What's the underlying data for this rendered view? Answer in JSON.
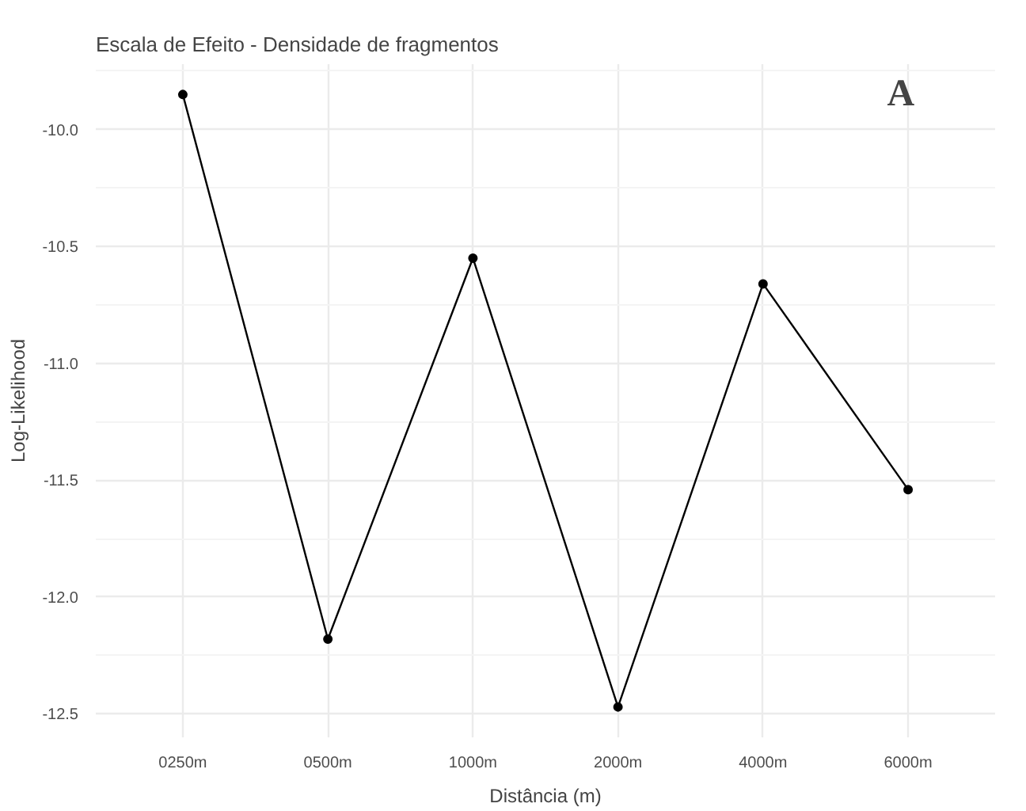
{
  "chart_data": {
    "type": "line",
    "title": "Escala de Efeito - Densidade de fragmentos",
    "xlabel": "Distância (m)",
    "ylabel": "Log-Likelihood",
    "categories": [
      "0250m",
      "0500m",
      "1000m",
      "2000m",
      "4000m",
      "6000m"
    ],
    "series": [
      {
        "color": "#000000",
        "values": [
          -9.85,
          -12.18,
          -10.55,
          -12.47,
          -10.66,
          -11.54
        ]
      }
    ],
    "ylim": [
      -12.6,
      -9.72
    ],
    "yticks": [
      {
        "value": -12.5,
        "label": "-12.5"
      },
      {
        "value": -12.0,
        "label": "-12.0"
      },
      {
        "value": -11.5,
        "label": "-11.5"
      },
      {
        "value": -11.0,
        "label": "-11.0"
      },
      {
        "value": -10.5,
        "label": "-10.5"
      },
      {
        "value": -10.0,
        "label": "-10.0"
      }
    ],
    "grid": true,
    "marker": "circle",
    "line_style": "solid",
    "annotations": [
      "A"
    ]
  }
}
